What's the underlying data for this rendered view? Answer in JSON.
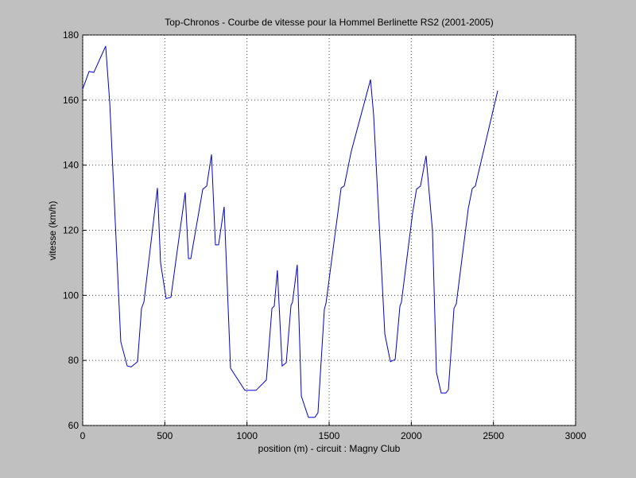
{
  "chart_data": {
    "type": "line",
    "title": "Top-Chronos - Courbe de vitesse pour la Hommel Berlinette RS2 (2001-2005)",
    "x_label": "position (m) - circuit : Magny Club",
    "y_label": "vitesse (km/h)",
    "xlim": [
      0,
      3000
    ],
    "ylim": [
      60,
      180
    ],
    "xticks": [
      0,
      500,
      1000,
      1500,
      2000,
      2500,
      3000
    ],
    "yticks": [
      60,
      80,
      100,
      120,
      140,
      160,
      180
    ],
    "grid": true,
    "series": [
      {
        "color": "#0000cc",
        "x": [
          0,
          39,
          68,
          140,
          165,
          232,
          271,
          295,
          334,
          358,
          373,
          455,
          474,
          508,
          537,
          624,
          644,
          658,
          731,
          755,
          784,
          808,
          827,
          861,
          900,
          987,
          1055,
          1118,
          1152,
          1166,
          1185,
          1214,
          1239,
          1268,
          1277,
          1306,
          1331,
          1374,
          1413,
          1432,
          1471,
          1481,
          1573,
          1592,
          1635,
          1752,
          1771,
          1839,
          1873,
          1902,
          1931,
          1940,
          2008,
          2032,
          2056,
          2090,
          2129,
          2153,
          2182,
          2211,
          2226,
          2260,
          2274,
          2347,
          2371,
          2390,
          2526
        ],
        "values": [
          163.4,
          168.8,
          168.5,
          176.6,
          159,
          85.7,
          78.3,
          78,
          79.6,
          96,
          98,
          133,
          110,
          99,
          99.4,
          131.6,
          111.3,
          111.3,
          132.6,
          133.6,
          143.3,
          115.5,
          115.5,
          127.2,
          77.6,
          70.8,
          70.8,
          74,
          96,
          96.7,
          107.7,
          78.3,
          79.3,
          96.9,
          97.9,
          109.4,
          69,
          62.5,
          62.5,
          63.9,
          95.7,
          97.6,
          133,
          133.6,
          144.3,
          166.3,
          155.3,
          88.1,
          79.6,
          80.3,
          96.7,
          97.9,
          125.3,
          132.6,
          133.6,
          142.9,
          119.9,
          76.4,
          70,
          70,
          71,
          96,
          97.4,
          126.7,
          132.8,
          133.6,
          162.9
        ]
      }
    ]
  }
}
